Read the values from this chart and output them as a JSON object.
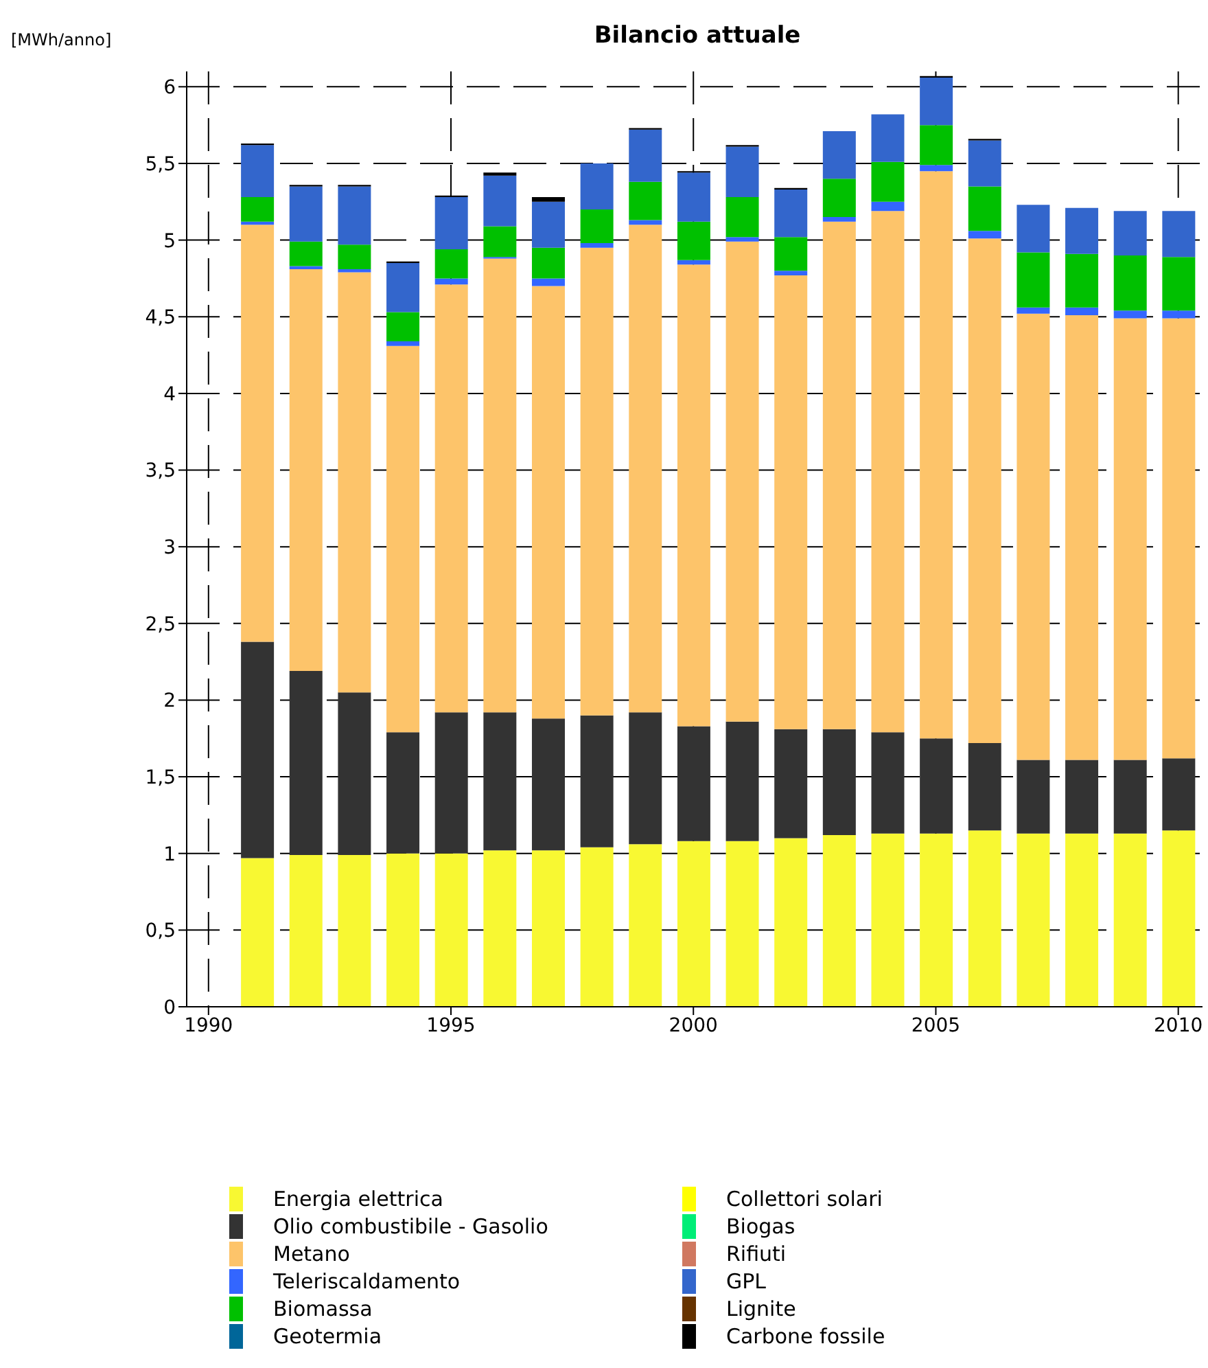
{
  "chart_data": {
    "type": "bar",
    "stacked": true,
    "title": "Bilancio attuale",
    "ylabel": "[MWh/anno]",
    "x": [
      1991,
      1992,
      1993,
      1994,
      1995,
      1996,
      1997,
      1998,
      1999,
      2000,
      2001,
      2002,
      2003,
      2004,
      2005,
      2006,
      2007,
      2008,
      2009,
      2010
    ],
    "xlim": [
      1989.55,
      2010.5
    ],
    "xticks": [
      1990,
      1995,
      2000,
      2005,
      2010
    ],
    "ylim": [
      0,
      6.1
    ],
    "yticks": [
      0,
      {
        "value": 0.5,
        "label": "0,5"
      },
      1,
      {
        "value": 1.5,
        "label": "1,5"
      },
      2,
      {
        "value": 2.5,
        "label": "2,5"
      },
      3,
      {
        "value": 3.5,
        "label": "3,5"
      },
      4,
      {
        "value": 4.5,
        "label": "4,5"
      },
      5,
      {
        "value": 5.5,
        "label": "5,5"
      },
      6
    ],
    "grid": true,
    "legend": "bottom",
    "series": [
      {
        "name": "Energia elettrica",
        "color": "#f8f832",
        "values": [
          0.97,
          0.99,
          0.99,
          1.0,
          1.0,
          1.02,
          1.02,
          1.04,
          1.06,
          1.08,
          1.08,
          1.1,
          1.12,
          1.13,
          1.13,
          1.15,
          1.13,
          1.13,
          1.13,
          1.15
        ]
      },
      {
        "name": "Olio combustibile - Gasolio",
        "color": "#333333",
        "values": [
          1.41,
          1.2,
          1.06,
          0.79,
          0.92,
          0.9,
          0.86,
          0.86,
          0.86,
          0.75,
          0.78,
          0.71,
          0.69,
          0.66,
          0.62,
          0.57,
          0.48,
          0.48,
          0.48,
          0.47
        ]
      },
      {
        "name": "Metano",
        "color": "#fdc46a",
        "values": [
          2.72,
          2.62,
          2.74,
          2.52,
          2.79,
          2.96,
          2.82,
          3.05,
          3.18,
          3.01,
          3.13,
          2.96,
          3.31,
          3.4,
          3.7,
          3.29,
          2.91,
          2.9,
          2.88,
          2.87
        ]
      },
      {
        "name": "Teleriscaldamento",
        "color": "#3366ff",
        "values": [
          0.02,
          0.02,
          0.02,
          0.03,
          0.04,
          0.01,
          0.05,
          0.03,
          0.03,
          0.03,
          0.03,
          0.03,
          0.03,
          0.06,
          0.04,
          0.05,
          0.04,
          0.05,
          0.05,
          0.05
        ]
      },
      {
        "name": "Biomassa",
        "color": "#00c000",
        "values": [
          0.16,
          0.16,
          0.16,
          0.19,
          0.19,
          0.2,
          0.2,
          0.22,
          0.25,
          0.25,
          0.26,
          0.22,
          0.25,
          0.26,
          0.26,
          0.29,
          0.36,
          0.35,
          0.36,
          0.35
        ]
      },
      {
        "name": "Geotermia",
        "color": "#006699",
        "values": [
          null,
          null,
          null,
          null,
          null,
          null,
          null,
          null,
          null,
          null,
          null,
          null,
          null,
          null,
          null,
          null,
          null,
          null,
          null,
          null
        ]
      },
      {
        "name": "Collettori solari",
        "color": "#ffff00",
        "values": [
          null,
          null,
          null,
          null,
          null,
          null,
          null,
          null,
          null,
          null,
          null,
          null,
          null,
          null,
          null,
          null,
          null,
          null,
          null,
          null
        ]
      },
      {
        "name": "Biogas",
        "color": "#00ee77",
        "values": [
          null,
          null,
          null,
          null,
          null,
          null,
          null,
          null,
          null,
          null,
          null,
          null,
          null,
          null,
          null,
          null,
          null,
          null,
          null,
          null
        ]
      },
      {
        "name": "Rifiuti",
        "color": "#d07860",
        "values": [
          null,
          null,
          null,
          null,
          null,
          null,
          null,
          null,
          null,
          null,
          null,
          null,
          null,
          null,
          null,
          null,
          null,
          null,
          null,
          null
        ]
      },
      {
        "name": "GPL",
        "color": "#3366cc",
        "values": [
          0.34,
          0.36,
          0.38,
          0.32,
          0.34,
          0.33,
          0.3,
          0.3,
          0.34,
          0.32,
          0.33,
          0.31,
          0.31,
          0.31,
          0.31,
          0.3,
          0.31,
          0.3,
          0.29,
          0.3
        ]
      },
      {
        "name": "Lignite",
        "color": "#663300",
        "values": [
          null,
          null,
          null,
          null,
          null,
          null,
          null,
          null,
          null,
          null,
          null,
          null,
          null,
          null,
          null,
          null,
          null,
          null,
          null,
          null
        ]
      },
      {
        "name": "Carbone fossile",
        "color": "#000000",
        "values": [
          0.01,
          0.01,
          0.01,
          0.01,
          0.01,
          0.02,
          0.03,
          null,
          0.01,
          0.01,
          0.01,
          0.01,
          null,
          null,
          0.01,
          0.01,
          null,
          null,
          null,
          null
        ]
      }
    ]
  }
}
